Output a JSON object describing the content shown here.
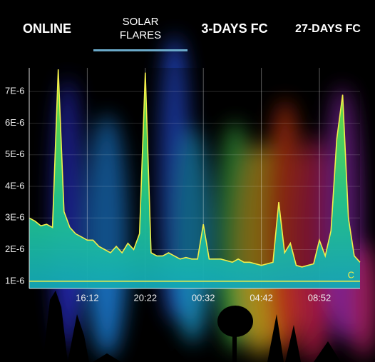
{
  "tabs": [
    "ONLINE",
    "SOLAR FLARES",
    "3-DAYS FC",
    "27-DAYS FC"
  ],
  "selected_tab": 1,
  "chart_data": {
    "type": "area",
    "color": "#f2ee4a",
    "categories": [
      null,
      null,
      null,
      null,
      null,
      null,
      null,
      null,
      null,
      null,
      "16:12",
      null,
      null,
      null,
      null,
      null,
      null,
      null,
      null,
      null,
      "20:22",
      null,
      null,
      null,
      null,
      null,
      null,
      null,
      null,
      null,
      "00:32",
      null,
      null,
      null,
      null,
      null,
      null,
      null,
      null,
      null,
      "04:42",
      null,
      null,
      null,
      null,
      null,
      null,
      null,
      null,
      null,
      "08:52",
      null,
      null,
      null,
      null,
      null,
      null,
      null
    ],
    "values": [
      3e-06,
      2.9e-06,
      2.75e-06,
      2.8e-06,
      2.7e-06,
      7.7e-06,
      3.2e-06,
      2.7e-06,
      2.5e-06,
      2.4e-06,
      2.3e-06,
      2.3e-06,
      2.1e-06,
      2e-06,
      1.9e-06,
      2.1e-06,
      1.9e-06,
      2.2e-06,
      2e-06,
      2.5e-06,
      7.6e-06,
      1.9e-06,
      1.8e-06,
      1.8e-06,
      1.9e-06,
      1.8e-06,
      1.7e-06,
      1.75e-06,
      1.7e-06,
      1.7e-06,
      2.8e-06,
      1.7e-06,
      1.7e-06,
      1.7e-06,
      1.65e-06,
      1.6e-06,
      1.7e-06,
      1.6e-06,
      1.6e-06,
      1.55e-06,
      1.5e-06,
      1.55e-06,
      1.6e-06,
      3.5e-06,
      1.9e-06,
      2.2e-06,
      1.5e-06,
      1.45e-06,
      1.5e-06,
      1.55e-06,
      2.3e-06,
      1.8e-06,
      2.6e-06,
      5.5e-06,
      6.9e-06,
      3e-06,
      1.8e-06,
      1.6e-06
    ],
    "ylim": [
      7.7e-07,
      7.75e-06
    ],
    "yticks": [
      {
        "value": 1e-06,
        "label": "1E-6"
      },
      {
        "value": 2e-06,
        "label": "2E-6"
      },
      {
        "value": 3e-06,
        "label": "3E-6"
      },
      {
        "value": 4e-06,
        "label": "4E-6"
      },
      {
        "value": 5e-06,
        "label": "5E-6"
      },
      {
        "value": 6e-06,
        "label": "6E-6"
      },
      {
        "value": 7e-06,
        "label": "7E-6"
      }
    ],
    "grid": true,
    "annotations": [
      {
        "label": "C",
        "value": 1e-06
      }
    ]
  }
}
